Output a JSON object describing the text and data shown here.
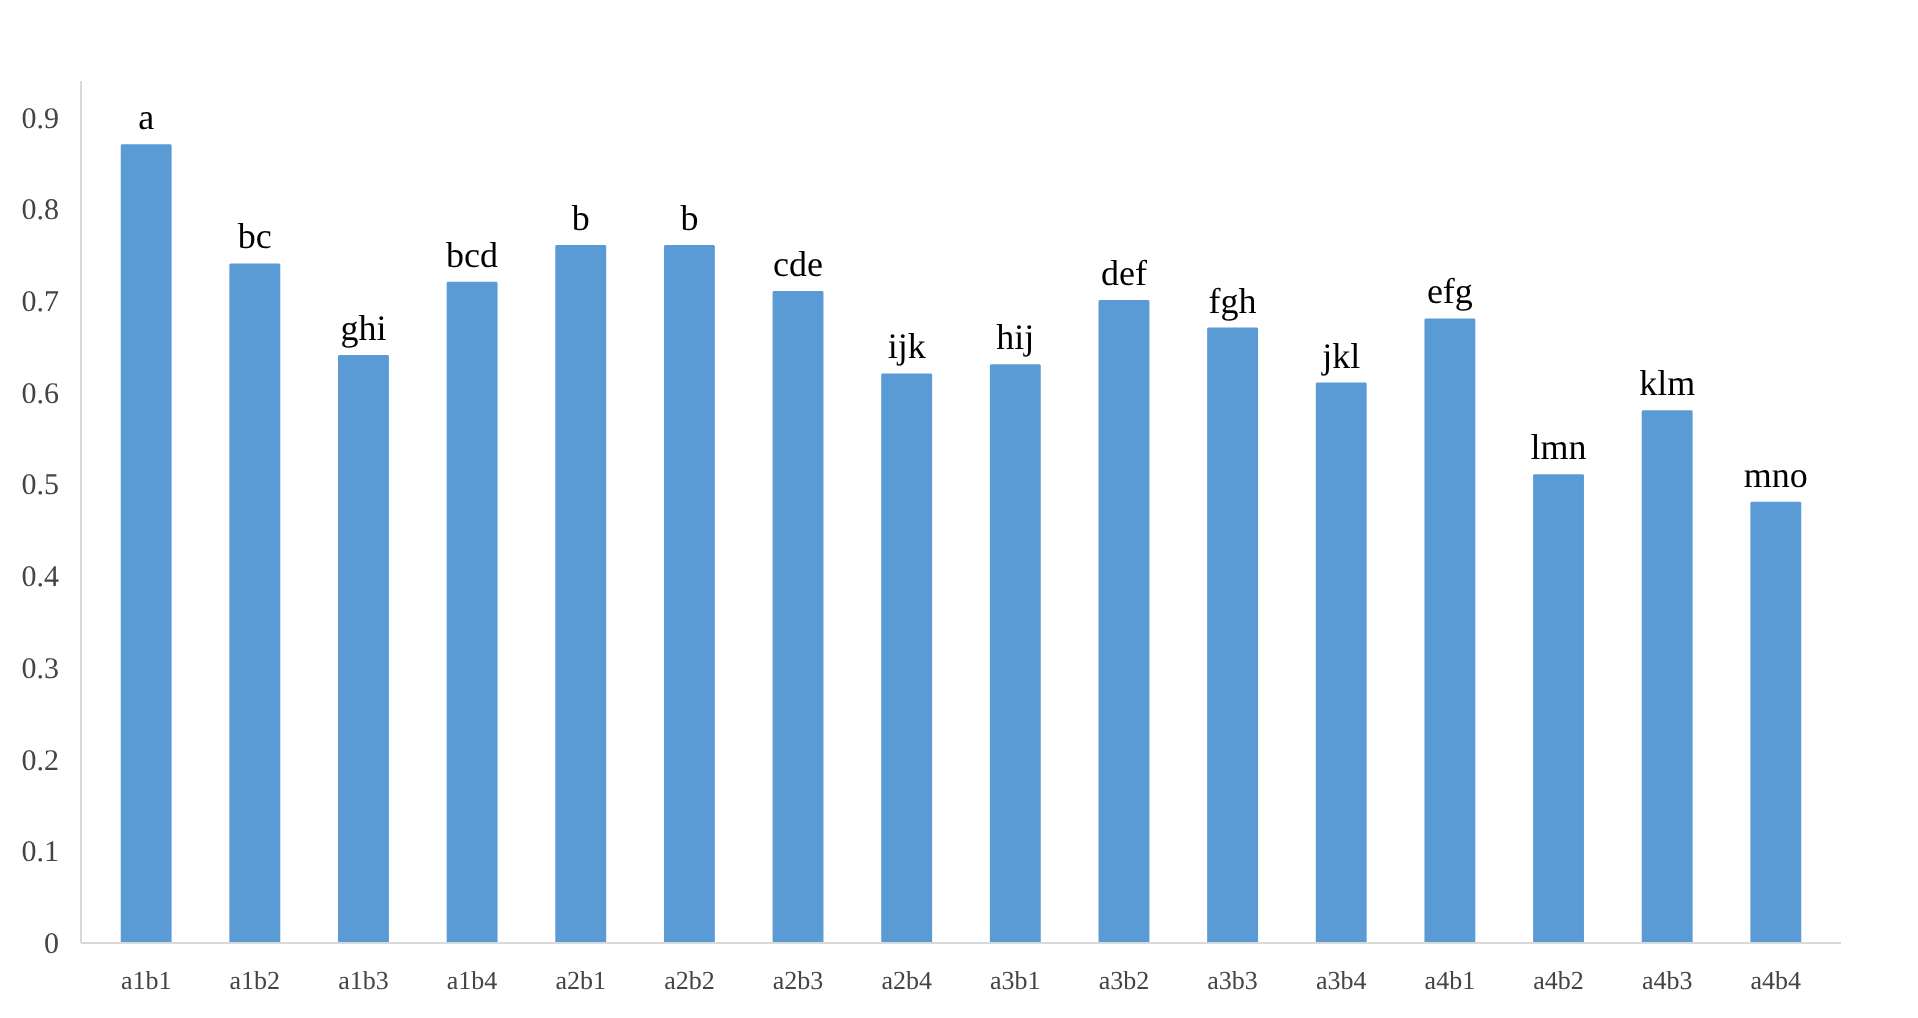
{
  "chart_data": {
    "type": "bar",
    "categories": [
      "a1b1",
      "a1b2",
      "a1b3",
      "a1b4",
      "a2b1",
      "a2b2",
      "a2b3",
      "a2b4",
      "a3b1",
      "a3b2",
      "a3b3",
      "a3b4",
      "a4b1",
      "a4b2",
      "a4b3",
      "a4b4"
    ],
    "values": [
      0.87,
      0.74,
      0.64,
      0.72,
      0.76,
      0.76,
      0.71,
      0.62,
      0.63,
      0.7,
      0.67,
      0.61,
      0.68,
      0.51,
      0.58,
      0.48
    ],
    "color": "#5b9bd5",
    "ylim": [
      0,
      0.94
    ],
    "yticks": [
      0,
      0.1,
      0.2,
      0.3,
      0.4,
      0.5,
      0.6,
      0.7,
      0.8,
      0.9
    ],
    "grid": false,
    "annotations": [
      {
        "text": "a",
        "x": "a1b1",
        "y": 0.87
      },
      {
        "text": "bc",
        "x": "a1b2",
        "y": 0.74
      },
      {
        "text": "ghi",
        "x": "a1b3",
        "y": 0.64
      },
      {
        "text": "bcd",
        "x": "a1b4",
        "y": 0.72
      },
      {
        "text": "b",
        "x": "a2b1",
        "y": 0.76
      },
      {
        "text": "b",
        "x": "a2b2",
        "y": 0.76
      },
      {
        "text": "cde",
        "x": "a2b3",
        "y": 0.71
      },
      {
        "text": "ijk",
        "x": "a2b4",
        "y": 0.62
      },
      {
        "text": "hij",
        "x": "a3b1",
        "y": 0.63
      },
      {
        "text": "def",
        "x": "a3b2",
        "y": 0.7
      },
      {
        "text": "fgh",
        "x": "a3b3",
        "y": 0.67
      },
      {
        "text": "jkl",
        "x": "a3b4",
        "y": 0.61
      },
      {
        "text": "efg",
        "x": "a4b1",
        "y": 0.68
      },
      {
        "text": "lmn",
        "x": "a4b2",
        "y": 0.51
      },
      {
        "text": "klm",
        "x": "a4b3",
        "y": 0.58
      },
      {
        "text": "mno",
        "x": "a4b4",
        "y": 0.48
      }
    ]
  }
}
